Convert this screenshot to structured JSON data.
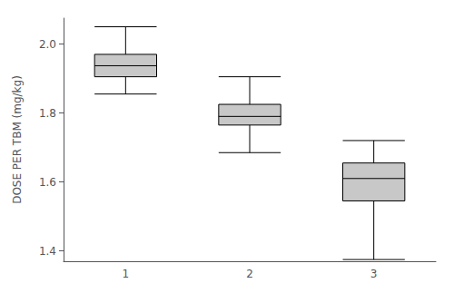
{
  "chart_data": {
    "type": "boxplot",
    "categories": [
      "1",
      "2",
      "3"
    ],
    "boxes": [
      {
        "low": 1.855,
        "q1": 1.905,
        "median": 1.937,
        "q3": 1.97,
        "high": 2.05
      },
      {
        "low": 1.685,
        "q1": 1.765,
        "median": 1.79,
        "q3": 1.825,
        "high": 1.905
      },
      {
        "low": 1.375,
        "q1": 1.545,
        "median": 1.61,
        "q3": 1.655,
        "high": 1.72
      }
    ],
    "ylabel": "DOSE PER TBM (mg/kg)",
    "ylim": [
      1.37,
      2.075
    ],
    "yticks": [
      1.4,
      1.6,
      1.8,
      {
        "value": 2.0,
        "label": "2.0"
      }
    ],
    "color": "#c8c8c8",
    "grid": false
  }
}
